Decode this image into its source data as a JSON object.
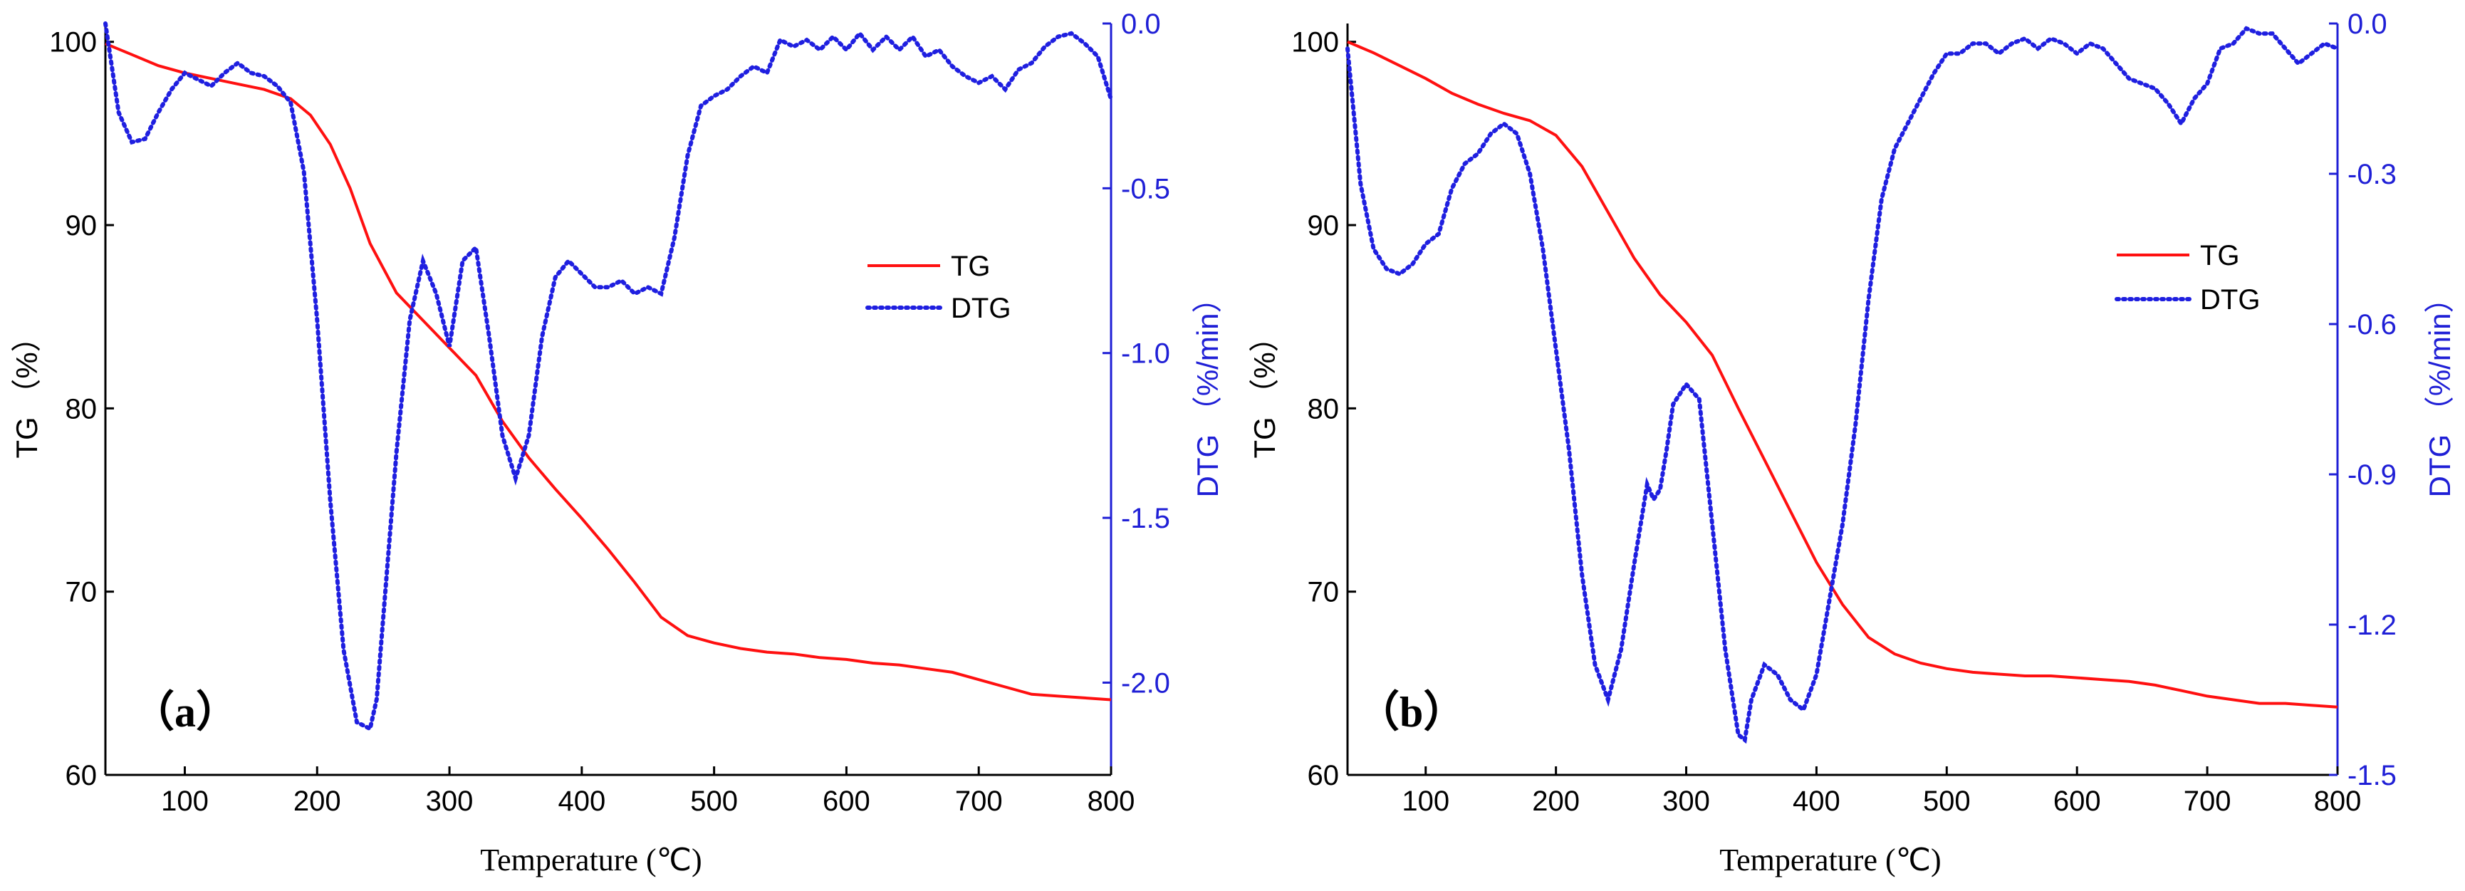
{
  "colors": {
    "tg": "#ff1010",
    "dtg": "#1f1fe0",
    "axis_right": "#1f1fd6"
  },
  "chart_data": [
    {
      "type": "line",
      "panel_label": "（a）",
      "xlabel": "Temperature (℃)",
      "ylabel": "TG （%）",
      "y2label": "DTG （%/min）",
      "xlim": [
        40,
        800
      ],
      "ylim": [
        60,
        101
      ],
      "y2lim": [
        -2.28,
        0.0
      ],
      "xticks": [
        100,
        200,
        300,
        400,
        500,
        600,
        700,
        800
      ],
      "yticks": [
        60,
        70,
        80,
        90,
        100
      ],
      "y2ticks": [
        0.0,
        -0.5,
        -1.0,
        -1.5,
        -2.0
      ],
      "y2tick_labels": [
        "0.0",
        "-0.5",
        "-1.0",
        "-1.5",
        "-2.0"
      ],
      "legend": [
        "TG",
        "DTG"
      ],
      "legend_position": "center-right",
      "series": [
        {
          "name": "TG",
          "axis": "left",
          "x": [
            40,
            60,
            80,
            100,
            120,
            140,
            160,
            180,
            195,
            210,
            225,
            240,
            260,
            280,
            300,
            320,
            340,
            360,
            380,
            400,
            420,
            440,
            460,
            480,
            500,
            520,
            540,
            560,
            580,
            600,
            620,
            640,
            660,
            680,
            700,
            720,
            740,
            760,
            780,
            800
          ],
          "values": [
            99.9,
            99.3,
            98.7,
            98.3,
            98.0,
            97.7,
            97.4,
            96.9,
            96.0,
            94.4,
            92.0,
            89.0,
            86.3,
            84.8,
            83.3,
            81.8,
            79.3,
            77.3,
            75.6,
            74.0,
            72.3,
            70.5,
            68.6,
            67.6,
            67.2,
            66.9,
            66.7,
            66.6,
            66.4,
            66.3,
            66.1,
            66.0,
            65.8,
            65.6,
            65.2,
            64.8,
            64.4,
            64.3,
            64.2,
            64.1
          ]
        },
        {
          "name": "DTG",
          "axis": "right",
          "x": [
            40,
            50,
            60,
            70,
            80,
            90,
            100,
            110,
            120,
            130,
            140,
            150,
            160,
            170,
            180,
            190,
            200,
            210,
            220,
            230,
            240,
            245,
            250,
            260,
            270,
            280,
            290,
            300,
            310,
            320,
            330,
            340,
            350,
            360,
            370,
            380,
            390,
            400,
            410,
            420,
            430,
            440,
            450,
            460,
            470,
            480,
            490,
            500,
            510,
            520,
            530,
            540,
            550,
            560,
            570,
            580,
            590,
            600,
            610,
            620,
            630,
            640,
            650,
            660,
            670,
            680,
            690,
            700,
            710,
            720,
            730,
            740,
            750,
            760,
            770,
            780,
            790,
            800
          ],
          "values": [
            0.0,
            -0.27,
            -0.36,
            -0.35,
            -0.27,
            -0.2,
            -0.15,
            -0.17,
            -0.19,
            -0.15,
            -0.12,
            -0.15,
            -0.16,
            -0.19,
            -0.24,
            -0.45,
            -0.9,
            -1.45,
            -1.9,
            -2.12,
            -2.14,
            -2.05,
            -1.8,
            -1.3,
            -0.9,
            -0.72,
            -0.82,
            -0.98,
            -0.72,
            -0.68,
            -0.95,
            -1.25,
            -1.38,
            -1.25,
            -0.95,
            -0.77,
            -0.72,
            -0.76,
            -0.8,
            -0.8,
            -0.78,
            -0.82,
            -0.8,
            -0.82,
            -0.65,
            -0.4,
            -0.25,
            -0.22,
            -0.2,
            -0.16,
            -0.13,
            -0.15,
            -0.05,
            -0.07,
            -0.05,
            -0.08,
            -0.04,
            -0.08,
            -0.03,
            -0.08,
            -0.04,
            -0.08,
            -0.04,
            -0.1,
            -0.08,
            -0.13,
            -0.16,
            -0.18,
            -0.16,
            -0.2,
            -0.14,
            -0.12,
            -0.07,
            -0.04,
            -0.03,
            -0.06,
            -0.1,
            -0.23
          ]
        }
      ]
    },
    {
      "type": "line",
      "panel_label": "（b）",
      "xlabel": "Temperature (℃)",
      "ylabel": "TG （%）",
      "y2label": "DTG （%/min）",
      "xlim": [
        40,
        800
      ],
      "ylim": [
        60,
        101
      ],
      "y2lim": [
        -1.5,
        0.0
      ],
      "xticks": [
        100,
        200,
        300,
        400,
        500,
        600,
        700,
        800
      ],
      "yticks": [
        60,
        70,
        80,
        90,
        100
      ],
      "y2ticks": [
        0.0,
        -0.3,
        -0.6,
        -0.9,
        -1.2,
        -1.5
      ],
      "y2tick_labels": [
        "0.0",
        "-0.3",
        "-0.6",
        "-0.9",
        "-1.2",
        "-1.5"
      ],
      "legend": [
        "TG",
        "DTG"
      ],
      "legend_position": "center-right",
      "series": [
        {
          "name": "TG",
          "axis": "left",
          "x": [
            40,
            60,
            80,
            100,
            120,
            140,
            160,
            180,
            200,
            220,
            240,
            260,
            280,
            300,
            320,
            340,
            360,
            380,
            400,
            420,
            440,
            460,
            480,
            500,
            520,
            540,
            560,
            580,
            600,
            620,
            640,
            660,
            680,
            700,
            720,
            740,
            760,
            780,
            800
          ],
          "values": [
            100.0,
            99.4,
            98.7,
            98.0,
            97.2,
            96.6,
            96.1,
            95.7,
            94.9,
            93.2,
            90.7,
            88.2,
            86.2,
            84.7,
            82.9,
            80.0,
            77.2,
            74.4,
            71.6,
            69.3,
            67.5,
            66.6,
            66.1,
            65.8,
            65.6,
            65.5,
            65.4,
            65.4,
            65.3,
            65.2,
            65.1,
            64.9,
            64.6,
            64.3,
            64.1,
            63.9,
            63.9,
            63.8,
            63.7
          ]
        },
        {
          "name": "DTG",
          "axis": "right",
          "x": [
            40,
            50,
            60,
            70,
            80,
            90,
            100,
            110,
            120,
            130,
            140,
            150,
            160,
            170,
            180,
            190,
            200,
            210,
            220,
            230,
            240,
            250,
            260,
            270,
            275,
            280,
            285,
            290,
            300,
            310,
            320,
            330,
            340,
            345,
            350,
            360,
            370,
            380,
            390,
            400,
            410,
            420,
            430,
            440,
            450,
            460,
            470,
            480,
            490,
            500,
            510,
            520,
            530,
            540,
            550,
            560,
            570,
            580,
            590,
            600,
            610,
            620,
            630,
            640,
            650,
            660,
            670,
            680,
            690,
            700,
            710,
            720,
            730,
            740,
            750,
            760,
            770,
            780,
            790,
            800
          ],
          "values": [
            -0.05,
            -0.32,
            -0.45,
            -0.49,
            -0.5,
            -0.48,
            -0.44,
            -0.42,
            -0.33,
            -0.28,
            -0.26,
            -0.22,
            -0.2,
            -0.22,
            -0.3,
            -0.45,
            -0.65,
            -0.85,
            -1.1,
            -1.28,
            -1.35,
            -1.25,
            -1.08,
            -0.92,
            -0.95,
            -0.93,
            -0.85,
            -0.76,
            -0.72,
            -0.75,
            -1.0,
            -1.25,
            -1.42,
            -1.43,
            -1.35,
            -1.28,
            -1.3,
            -1.35,
            -1.37,
            -1.3,
            -1.15,
            -1.0,
            -0.8,
            -0.55,
            -0.35,
            -0.25,
            -0.2,
            -0.15,
            -0.1,
            -0.06,
            -0.06,
            -0.04,
            -0.04,
            -0.06,
            -0.04,
            -0.03,
            -0.05,
            -0.03,
            -0.04,
            -0.06,
            -0.04,
            -0.05,
            -0.08,
            -0.11,
            -0.12,
            -0.13,
            -0.16,
            -0.2,
            -0.15,
            -0.12,
            -0.05,
            -0.04,
            -0.01,
            -0.02,
            -0.02,
            -0.05,
            -0.08,
            -0.06,
            -0.04,
            -0.05
          ]
        }
      ]
    }
  ]
}
